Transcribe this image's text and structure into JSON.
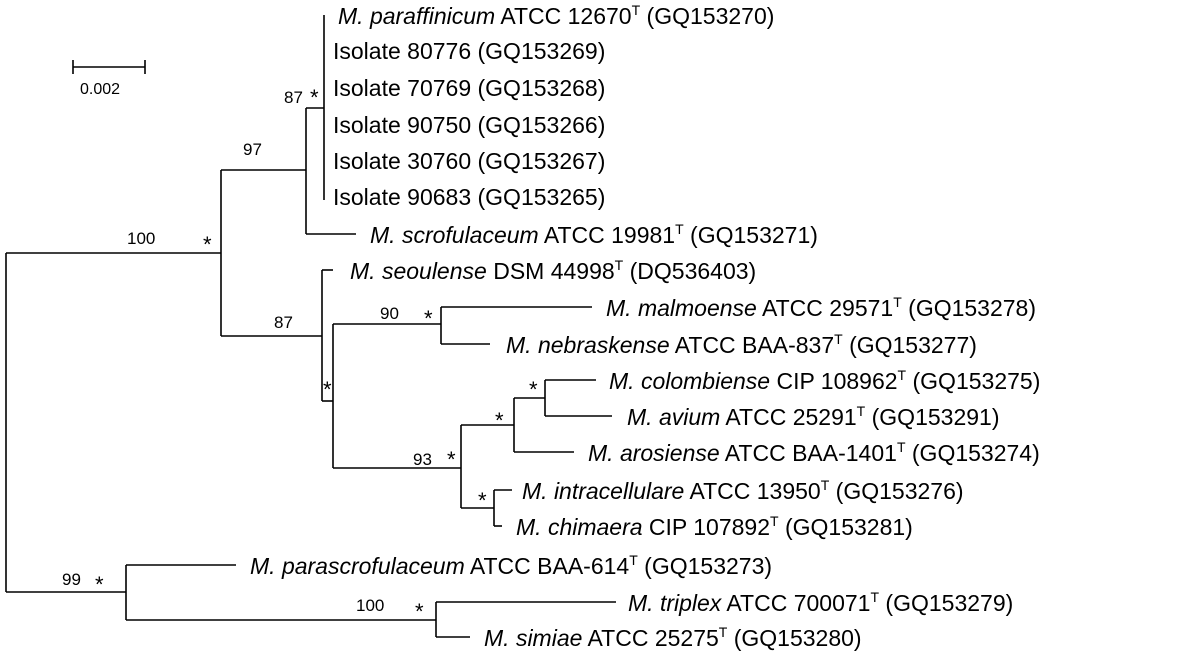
{
  "scale_bar": {
    "label": "0.002"
  },
  "taxa": {
    "paraffinicum": {
      "species": "M. paraffinicum",
      "strain": " ATCC 12670",
      "type_mark": "T",
      "accession": " (GQ153270)"
    },
    "iso80776": {
      "species": "",
      "strain": "Isolate 80776 (GQ153269)",
      "type_mark": "",
      "accession": ""
    },
    "iso70769": {
      "species": "",
      "strain": "Isolate 70769 (GQ153268)",
      "type_mark": "",
      "accession": ""
    },
    "iso90750": {
      "species": "",
      "strain": "Isolate 90750 (GQ153266)",
      "type_mark": "",
      "accession": ""
    },
    "iso30760": {
      "species": "",
      "strain": "Isolate 30760 (GQ153267)",
      "type_mark": "",
      "accession": ""
    },
    "iso90683": {
      "species": "",
      "strain": "Isolate 90683 (GQ153265)",
      "type_mark": "",
      "accession": ""
    },
    "scrofulaceum": {
      "species": "M. scrofulaceum",
      "strain": " ATCC 19981",
      "type_mark": "T",
      "accession": " (GQ153271)"
    },
    "seoulense": {
      "species": "M. seoulense",
      "strain": " DSM 44998",
      "type_mark": "T",
      "accession": " (DQ536403)"
    },
    "malmoense": {
      "species": "M. malmoense",
      "strain": " ATCC 29571",
      "type_mark": "T",
      "accession": " (GQ153278)"
    },
    "nebraskense": {
      "species": "M. nebraskense",
      "strain": " ATCC BAA-837",
      "type_mark": "T",
      "accession": " (GQ153277)"
    },
    "colombiense": {
      "species": "M. colombiense",
      "strain": " CIP 108962",
      "type_mark": "T",
      "accession": " (GQ153275)"
    },
    "avium": {
      "species": "M. avium",
      "strain": " ATCC 25291",
      "type_mark": "T",
      "accession": " (GQ153291)"
    },
    "arosiense": {
      "species": "M. arosiense",
      "strain": " ATCC BAA-1401",
      "type_mark": "T",
      "accession": " (GQ153274)"
    },
    "intracellulare": {
      "species": "M. intracellulare",
      "strain": " ATCC 13950",
      "type_mark": "T",
      "accession": " (GQ153276)"
    },
    "chimaera": {
      "species": "M. chimaera",
      "strain": " CIP 107892",
      "type_mark": "T",
      "accession": " (GQ153281)"
    },
    "parascrofulaceum": {
      "species": "M. parascrofulaceum",
      "strain": " ATCC BAA-614",
      "type_mark": "T",
      "accession": " (GQ153273)"
    },
    "triplex": {
      "species": "M. triplex",
      "strain": " ATCC 700071",
      "type_mark": "T",
      "accession": " (GQ153279)"
    },
    "simiae": {
      "species": "M. simiae",
      "strain": " ATCC 25275",
      "type_mark": "T",
      "accession": " (GQ153280)"
    }
  },
  "supports": {
    "isolate_clade": "87",
    "scrof_clade": "97",
    "big_clade": "100",
    "avium_complex": "87",
    "malmoense_pair": "90",
    "avium_group": "93",
    "parascrof_clade": "99",
    "triplex_pair": "100"
  },
  "star_mark": "*"
}
